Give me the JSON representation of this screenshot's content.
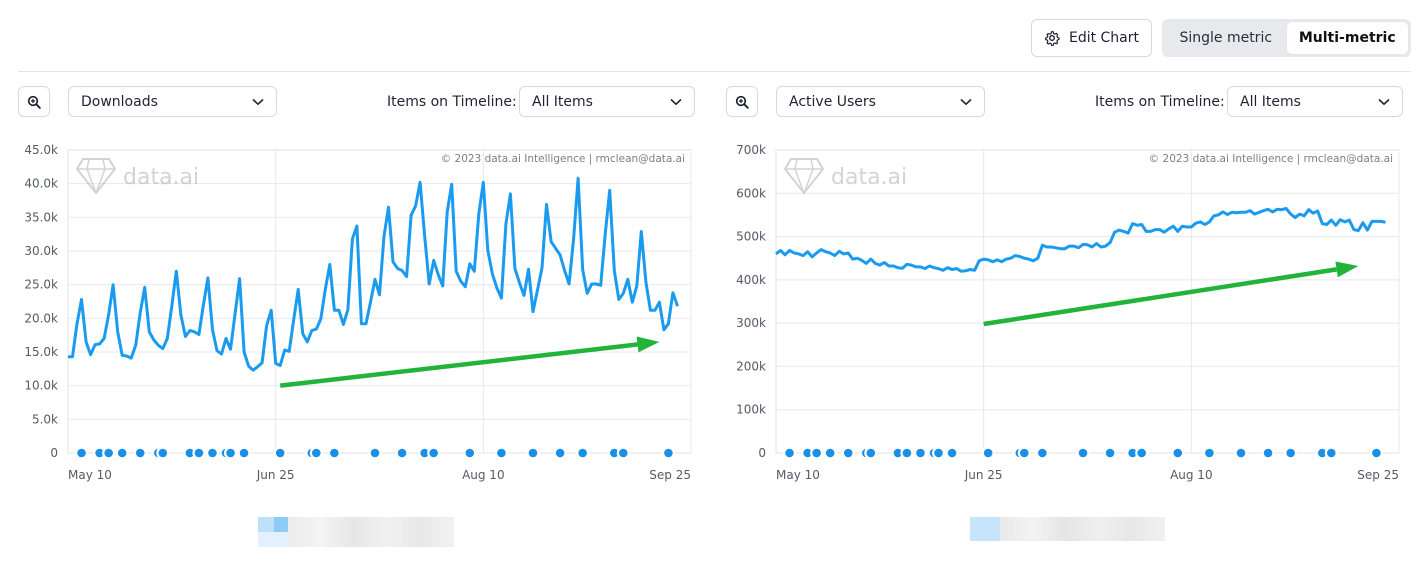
{
  "toolbar": {
    "edit_chart_label": "Edit Chart",
    "edit_chart_icon": "gear-icon",
    "view_modes": [
      {
        "label": "Single metric",
        "active": false
      },
      {
        "label": "Multi-metric",
        "active": true
      }
    ]
  },
  "panels": [
    {
      "metric_select": "Downloads",
      "timeline_label": "Items on Timeline:",
      "timeline_select": "All Items",
      "zoom_icon": "zoom-in-icon",
      "chart_data": {
        "type": "line",
        "metric": "Downloads",
        "watermark": "data.ai",
        "copyright": "© 2023 data.ai Intelligence | rmclean@data.ai",
        "ylim": [
          0,
          45000
        ],
        "yticks": [
          "0",
          "5.0k",
          "10.0k",
          "15.0k",
          "20.0k",
          "25.0k",
          "30.0k",
          "35.0k",
          "40.0k",
          "45.0k"
        ],
        "xticks": [
          "May 10",
          "Jun 25",
          "Aug 10",
          "Sep 25"
        ],
        "xrange": [
          "2023-05-10",
          "2023-09-25"
        ],
        "line_color": "#1a9bf0",
        "arrow_color": "#22b33a",
        "arrow": {
          "from": [
            "2023-06-26",
            10000
          ],
          "to": [
            "2023-09-18",
            16500
          ]
        },
        "series": [
          {
            "values": [
              14300,
              14300,
              19200,
              22800,
              16500,
              14600,
              16100,
              16200,
              17000,
              20500,
              25000,
              18000,
              14500,
              14400,
              14100,
              16000,
              20800,
              24600,
              18000,
              16800,
              16000,
              15500,
              17000,
              21800,
              27000,
              20500,
              17300,
              18200,
              18000,
              17600,
              22000,
              26000,
              18300,
              15200,
              14700,
              17000,
              15400,
              20600,
              25900,
              15000,
              12900,
              12300,
              12800,
              13400,
              18900,
              21200,
              13300,
              13000,
              15300,
              15100,
              19800,
              24300,
              17700,
              16500,
              18200,
              18400,
              19900,
              24300,
              28000,
              21200,
              21200,
              19100,
              21300,
              31800,
              33700,
              19200,
              19200,
              22400,
              25800,
              23500,
              32200,
              36500,
              28400,
              27400,
              27100,
              26200,
              35300,
              36700,
              40200,
              32300,
              25100,
              28600,
              26500,
              24800,
              35800,
              39900,
              27000,
              25500,
              24700,
              28100,
              27000,
              35500,
              40200,
              30100,
              26600,
              24500,
              23000,
              34000,
              38500,
              27400,
              25300,
              23400,
              27300,
              21000,
              24200,
              27500,
              36900,
              31400,
              30400,
              29400,
              27100,
              25100,
              31800,
              40800,
              27200,
              23700,
              25100,
              25100,
              24900,
              32500,
              39000,
              27100,
              22800,
              23700,
              25800,
              22400,
              24800,
              32900,
              25400,
              21200,
              21200,
              22400,
              18300,
              19200,
              23800,
              21800
            ]
          }
        ]
      },
      "timeline_markers": [
        "2023-05-13",
        "2023-05-17",
        "2023-05-19",
        "2023-05-22",
        "2023-05-26",
        "2023-05-30",
        "2023-05-31",
        "2023-06-06",
        "2023-06-08",
        "2023-06-11",
        "2023-06-14",
        "2023-06-15",
        "2023-06-18",
        "2023-06-26",
        "2023-07-03",
        "2023-07-04",
        "2023-07-08",
        "2023-07-17",
        "2023-07-23",
        "2023-07-28",
        "2023-07-30",
        "2023-08-07",
        "2023-08-14",
        "2023-08-21",
        "2023-08-27",
        "2023-09-01",
        "2023-09-08",
        "2023-09-10",
        "2023-09-20"
      ]
    },
    {
      "metric_select": "Active Users",
      "timeline_label": "Items on Timeline:",
      "timeline_select": "All Items",
      "zoom_icon": "zoom-in-icon",
      "chart_data": {
        "type": "line",
        "metric": "Active Users",
        "watermark": "data.ai",
        "copyright": "© 2023 data.ai Intelligence | rmclean@data.ai",
        "ylim": [
          0,
          700000
        ],
        "yticks": [
          "0",
          "100k",
          "200k",
          "300k",
          "400k",
          "500k",
          "600k",
          "700k"
        ],
        "xticks": [
          "May 10",
          "Jun 25",
          "Aug 10",
          "Sep 25"
        ],
        "xrange": [
          "2023-05-10",
          "2023-09-25"
        ],
        "line_color": "#1a9bf0",
        "arrow_color": "#22b33a",
        "arrow": {
          "from": [
            "2023-06-25",
            298000
          ],
          "to": [
            "2023-09-16",
            432000
          ]
        },
        "series": [
          {
            "values": [
              460000,
              468000,
              458000,
              468000,
              462000,
              460000,
              456000,
              465000,
              453000,
              462000,
              470000,
              465000,
              462000,
              456000,
              466000,
              460000,
              462000,
              448000,
              450000,
              445000,
              438000,
              448000,
              438000,
              434000,
              440000,
              432000,
              432000,
              428000,
              427000,
              436000,
              434000,
              430000,
              430000,
              426000,
              432000,
              428000,
              426000,
              422000,
              428000,
              424000,
              426000,
              420000,
              421000,
              424000,
              422000,
              444000,
              448000,
              446000,
              442000,
              446000,
              442000,
              448000,
              450000,
              456000,
              454000,
              450000,
              448000,
              444000,
              450000,
              480000,
              476000,
              476000,
              474000,
              472000,
              472000,
              478000,
              478000,
              474000,
              482000,
              481000,
              476000,
              484000,
              476000,
              478000,
              486000,
              510000,
              515000,
              512000,
              508000,
              530000,
              526000,
              528000,
              512000,
              512000,
              516000,
              516000,
              510000,
              518000,
              524000,
              512000,
              524000,
              522000,
              522000,
              531000,
              534000,
              528000,
              534000,
              548000,
              550000,
              557000,
              551000,
              556000,
              555000,
              556000,
              556000,
              560000,
              552000,
              556000,
              560000,
              563000,
              557000,
              563000,
              562000,
              565000,
              552000,
              544000,
              552000,
              548000,
              562000,
              554000,
              559000,
              530000,
              528000,
              538000,
              526000,
              539000,
              534000,
              538000,
              516000,
              514000,
              532000,
              515000,
              535000,
              535000,
              535000,
              533000
            ]
          }
        ]
      },
      "timeline_markers": [
        "2023-05-13",
        "2023-05-17",
        "2023-05-19",
        "2023-05-22",
        "2023-05-26",
        "2023-05-30",
        "2023-05-31",
        "2023-06-06",
        "2023-06-08",
        "2023-06-11",
        "2023-06-14",
        "2023-06-15",
        "2023-06-18",
        "2023-06-26",
        "2023-07-03",
        "2023-07-04",
        "2023-07-08",
        "2023-07-17",
        "2023-07-23",
        "2023-07-28",
        "2023-07-30",
        "2023-08-07",
        "2023-08-14",
        "2023-08-21",
        "2023-08-27",
        "2023-09-01",
        "2023-09-08",
        "2023-09-10",
        "2023-09-20"
      ]
    }
  ]
}
